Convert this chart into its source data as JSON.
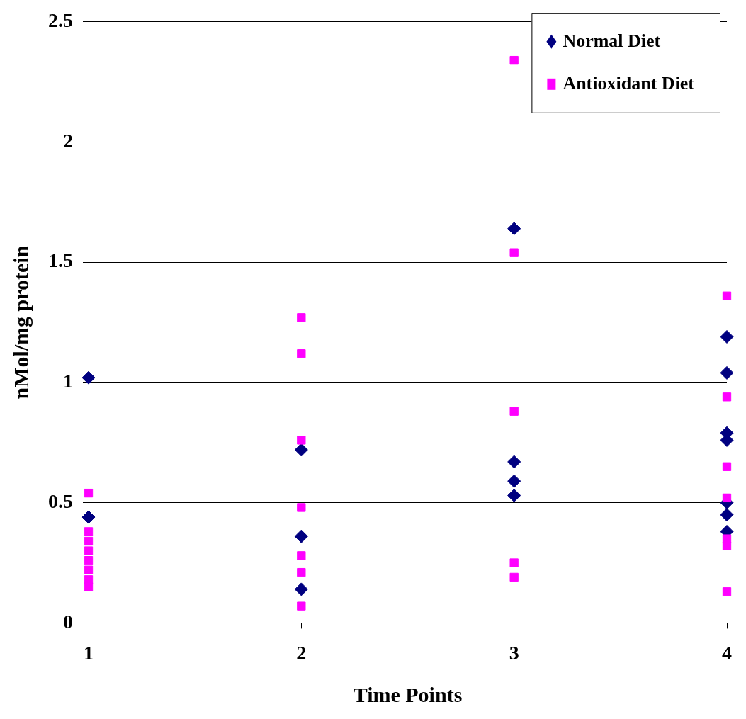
{
  "chart_data": {
    "type": "scatter",
    "xlabel": "Time Points",
    "ylabel": "nMol/mg protein",
    "xlim": [
      1,
      4
    ],
    "xticks": [
      1,
      2,
      3,
      4
    ],
    "ylim": [
      0,
      2.5
    ],
    "yticks": [
      0,
      0.5,
      1,
      1.5,
      2,
      2.5
    ],
    "grid": "y",
    "legend": "top right",
    "series": [
      {
        "name": "Normal Diet",
        "color": "#000080",
        "marker": "diamond",
        "x": [
          1,
          1,
          2,
          2,
          2,
          3,
          3,
          3,
          3,
          4,
          4,
          4,
          4,
          4,
          4,
          4
        ],
        "values": [
          1.02,
          0.44,
          0.72,
          0.36,
          0.14,
          1.64,
          0.67,
          0.59,
          0.53,
          1.19,
          1.04,
          0.79,
          0.76,
          0.5,
          0.45,
          0.38
        ]
      },
      {
        "name": "Antioxidant Diet",
        "color": "#ff00ff",
        "marker": "square",
        "x": [
          1,
          1,
          1,
          1,
          1,
          1,
          1,
          1,
          2,
          2,
          2,
          2,
          2,
          2,
          2,
          3,
          3,
          3,
          3,
          3,
          4,
          4,
          4,
          4,
          4,
          4,
          4
        ],
        "values": [
          0.54,
          0.38,
          0.34,
          0.3,
          0.26,
          0.22,
          0.18,
          0.15,
          1.27,
          1.12,
          0.76,
          0.48,
          0.28,
          0.21,
          0.07,
          2.34,
          1.54,
          0.88,
          0.25,
          0.19,
          1.36,
          0.94,
          0.65,
          0.52,
          0.35,
          0.32,
          0.13
        ]
      }
    ]
  }
}
